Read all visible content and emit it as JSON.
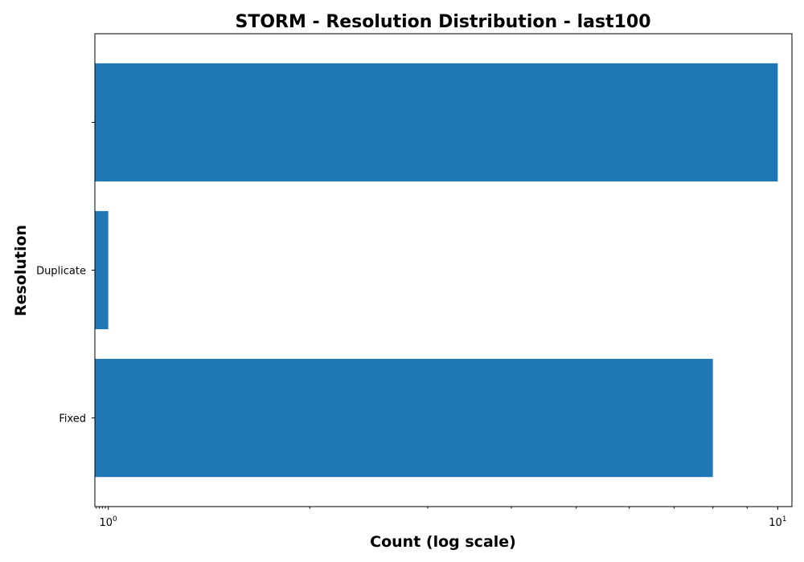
{
  "chart_data": {
    "type": "bar",
    "orientation": "horizontal",
    "title": "STORM - Resolution Distribution - last100",
    "xlabel": "Count (log scale)",
    "ylabel": "Resolution",
    "x_scale": "log",
    "xlim": [
      0.955,
      10.5
    ],
    "categories": [
      "Fixed",
      "Duplicate",
      ""
    ],
    "values": [
      8,
      1,
      10
    ],
    "bar_color": "#1f77b4",
    "grid": false,
    "x_ticks": [
      {
        "base": "10",
        "exp": "0",
        "value": 1
      },
      {
        "base": "10",
        "exp": "1",
        "value": 10
      }
    ],
    "x_minor_ticks": [
      2,
      3,
      4,
      5,
      6,
      7,
      8,
      9
    ]
  }
}
